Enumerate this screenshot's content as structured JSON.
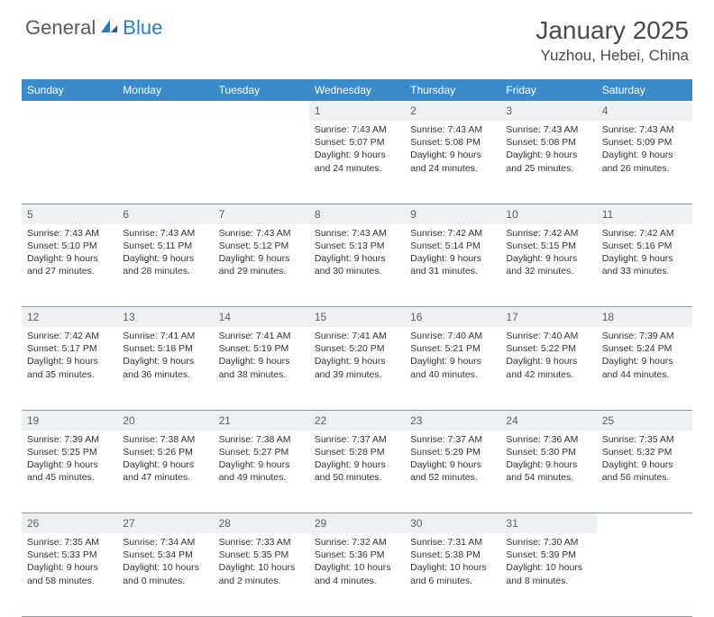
{
  "logo": {
    "general": "General",
    "blue": "Blue"
  },
  "title": "January 2025",
  "location": "Yuzhou, Hebei, China",
  "colors": {
    "header_bg": "#3b8bc9",
    "header_text": "#ffffff",
    "daynum_bg": "#eef1f4",
    "daynum_text": "#56606b",
    "cell_text": "#333333",
    "border": "#8a9aad",
    "logo_gray": "#5a5a5a",
    "logo_blue": "#2b7bbf"
  },
  "day_headers": [
    "Sunday",
    "Monday",
    "Tuesday",
    "Wednesday",
    "Thursday",
    "Friday",
    "Saturday"
  ],
  "weeks": [
    [
      null,
      null,
      null,
      {
        "n": "1",
        "sunrise": "7:43 AM",
        "sunset": "5:07 PM",
        "dl1": "Daylight: 9 hours",
        "dl2": "and 24 minutes."
      },
      {
        "n": "2",
        "sunrise": "7:43 AM",
        "sunset": "5:08 PM",
        "dl1": "Daylight: 9 hours",
        "dl2": "and 24 minutes."
      },
      {
        "n": "3",
        "sunrise": "7:43 AM",
        "sunset": "5:08 PM",
        "dl1": "Daylight: 9 hours",
        "dl2": "and 25 minutes."
      },
      {
        "n": "4",
        "sunrise": "7:43 AM",
        "sunset": "5:09 PM",
        "dl1": "Daylight: 9 hours",
        "dl2": "and 26 minutes."
      }
    ],
    [
      {
        "n": "5",
        "sunrise": "7:43 AM",
        "sunset": "5:10 PM",
        "dl1": "Daylight: 9 hours",
        "dl2": "and 27 minutes."
      },
      {
        "n": "6",
        "sunrise": "7:43 AM",
        "sunset": "5:11 PM",
        "dl1": "Daylight: 9 hours",
        "dl2": "and 28 minutes."
      },
      {
        "n": "7",
        "sunrise": "7:43 AM",
        "sunset": "5:12 PM",
        "dl1": "Daylight: 9 hours",
        "dl2": "and 29 minutes."
      },
      {
        "n": "8",
        "sunrise": "7:43 AM",
        "sunset": "5:13 PM",
        "dl1": "Daylight: 9 hours",
        "dl2": "and 30 minutes."
      },
      {
        "n": "9",
        "sunrise": "7:42 AM",
        "sunset": "5:14 PM",
        "dl1": "Daylight: 9 hours",
        "dl2": "and 31 minutes."
      },
      {
        "n": "10",
        "sunrise": "7:42 AM",
        "sunset": "5:15 PM",
        "dl1": "Daylight: 9 hours",
        "dl2": "and 32 minutes."
      },
      {
        "n": "11",
        "sunrise": "7:42 AM",
        "sunset": "5:16 PM",
        "dl1": "Daylight: 9 hours",
        "dl2": "and 33 minutes."
      }
    ],
    [
      {
        "n": "12",
        "sunrise": "7:42 AM",
        "sunset": "5:17 PM",
        "dl1": "Daylight: 9 hours",
        "dl2": "and 35 minutes."
      },
      {
        "n": "13",
        "sunrise": "7:41 AM",
        "sunset": "5:18 PM",
        "dl1": "Daylight: 9 hours",
        "dl2": "and 36 minutes."
      },
      {
        "n": "14",
        "sunrise": "7:41 AM",
        "sunset": "5:19 PM",
        "dl1": "Daylight: 9 hours",
        "dl2": "and 38 minutes."
      },
      {
        "n": "15",
        "sunrise": "7:41 AM",
        "sunset": "5:20 PM",
        "dl1": "Daylight: 9 hours",
        "dl2": "and 39 minutes."
      },
      {
        "n": "16",
        "sunrise": "7:40 AM",
        "sunset": "5:21 PM",
        "dl1": "Daylight: 9 hours",
        "dl2": "and 40 minutes."
      },
      {
        "n": "17",
        "sunrise": "7:40 AM",
        "sunset": "5:22 PM",
        "dl1": "Daylight: 9 hours",
        "dl2": "and 42 minutes."
      },
      {
        "n": "18",
        "sunrise": "7:39 AM",
        "sunset": "5:24 PM",
        "dl1": "Daylight: 9 hours",
        "dl2": "and 44 minutes."
      }
    ],
    [
      {
        "n": "19",
        "sunrise": "7:39 AM",
        "sunset": "5:25 PM",
        "dl1": "Daylight: 9 hours",
        "dl2": "and 45 minutes."
      },
      {
        "n": "20",
        "sunrise": "7:38 AM",
        "sunset": "5:26 PM",
        "dl1": "Daylight: 9 hours",
        "dl2": "and 47 minutes."
      },
      {
        "n": "21",
        "sunrise": "7:38 AM",
        "sunset": "5:27 PM",
        "dl1": "Daylight: 9 hours",
        "dl2": "and 49 minutes."
      },
      {
        "n": "22",
        "sunrise": "7:37 AM",
        "sunset": "5:28 PM",
        "dl1": "Daylight: 9 hours",
        "dl2": "and 50 minutes."
      },
      {
        "n": "23",
        "sunrise": "7:37 AM",
        "sunset": "5:29 PM",
        "dl1": "Daylight: 9 hours",
        "dl2": "and 52 minutes."
      },
      {
        "n": "24",
        "sunrise": "7:36 AM",
        "sunset": "5:30 PM",
        "dl1": "Daylight: 9 hours",
        "dl2": "and 54 minutes."
      },
      {
        "n": "25",
        "sunrise": "7:35 AM",
        "sunset": "5:32 PM",
        "dl1": "Daylight: 9 hours",
        "dl2": "and 56 minutes."
      }
    ],
    [
      {
        "n": "26",
        "sunrise": "7:35 AM",
        "sunset": "5:33 PM",
        "dl1": "Daylight: 9 hours",
        "dl2": "and 58 minutes."
      },
      {
        "n": "27",
        "sunrise": "7:34 AM",
        "sunset": "5:34 PM",
        "dl1": "Daylight: 10 hours",
        "dl2": "and 0 minutes."
      },
      {
        "n": "28",
        "sunrise": "7:33 AM",
        "sunset": "5:35 PM",
        "dl1": "Daylight: 10 hours",
        "dl2": "and 2 minutes."
      },
      {
        "n": "29",
        "sunrise": "7:32 AM",
        "sunset": "5:36 PM",
        "dl1": "Daylight: 10 hours",
        "dl2": "and 4 minutes."
      },
      {
        "n": "30",
        "sunrise": "7:31 AM",
        "sunset": "5:38 PM",
        "dl1": "Daylight: 10 hours",
        "dl2": "and 6 minutes."
      },
      {
        "n": "31",
        "sunrise": "7:30 AM",
        "sunset": "5:39 PM",
        "dl1": "Daylight: 10 hours",
        "dl2": "and 8 minutes."
      },
      null
    ]
  ],
  "labels": {
    "sunrise": "Sunrise:",
    "sunset": "Sunset:"
  }
}
